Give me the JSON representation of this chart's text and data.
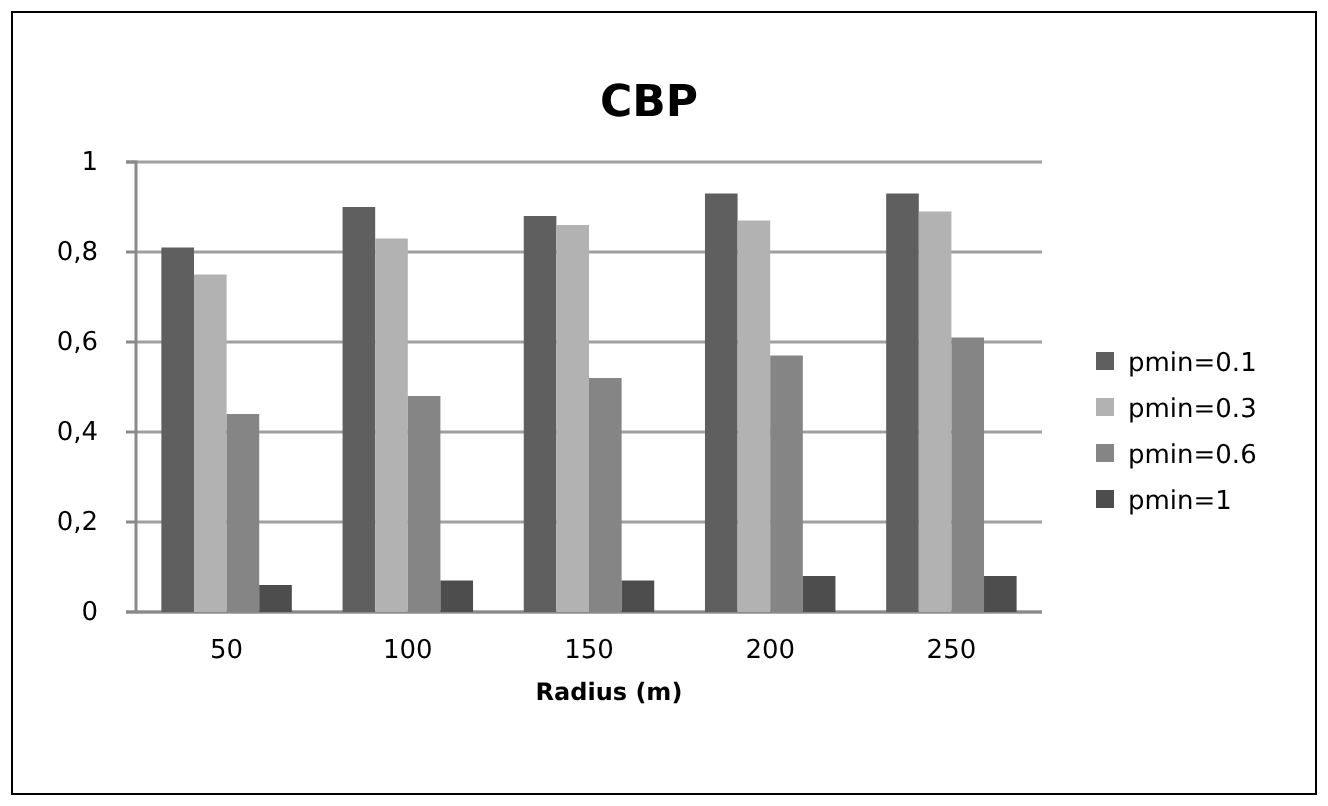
{
  "chart_data": {
    "type": "bar",
    "title": "CBP",
    "xlabel": "Radius (m)",
    "categories": [
      "50",
      "100",
      "150",
      "200",
      "250"
    ],
    "series": [
      {
        "name": "pmin=0.1",
        "color": "#5f5f5f",
        "values": [
          0.81,
          0.9,
          0.88,
          0.93,
          0.93
        ]
      },
      {
        "name": "pmin=0.3",
        "color": "#b2b2b2",
        "values": [
          0.75,
          0.83,
          0.86,
          0.87,
          0.89
        ]
      },
      {
        "name": "pmin=0.6",
        "color": "#858585",
        "values": [
          0.44,
          0.48,
          0.52,
          0.57,
          0.61
        ]
      },
      {
        "name": "pmin=1",
        "color": "#4d4d4d",
        "values": [
          0.06,
          0.07,
          0.07,
          0.08,
          0.08
        ]
      }
    ],
    "ylim": [
      0,
      1
    ],
    "yticks": [
      {
        "value": 0,
        "label": "0"
      },
      {
        "value": 0.2,
        "label": "0,2"
      },
      {
        "value": 0.4,
        "label": "0,4"
      },
      {
        "value": 0.6,
        "label": "0,6"
      },
      {
        "value": 0.8,
        "label": "0,8"
      },
      {
        "value": 1,
        "label": "1"
      }
    ],
    "grid": "y",
    "legend": "right"
  }
}
